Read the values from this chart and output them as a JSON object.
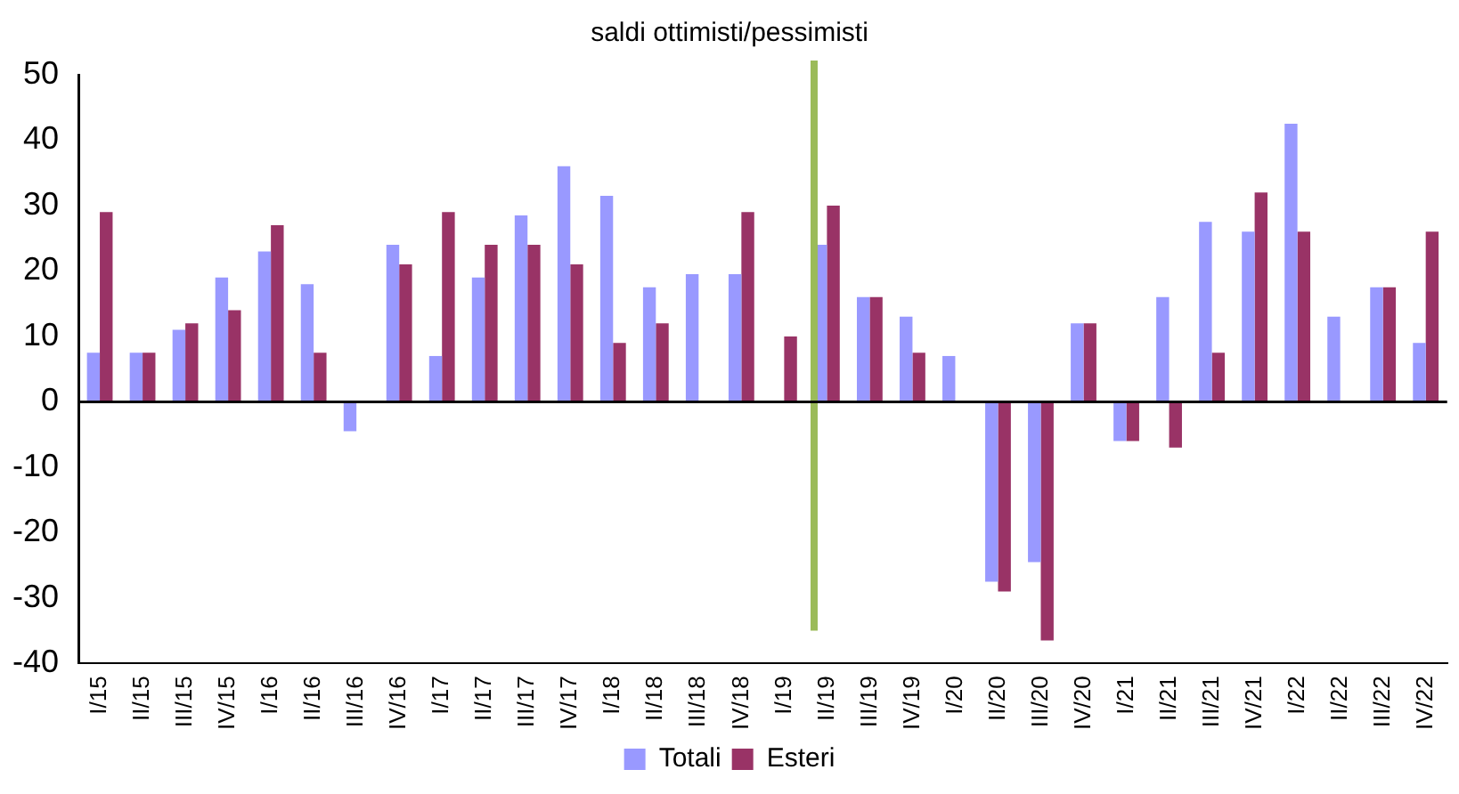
{
  "chart_data": {
    "type": "bar",
    "title": "saldi ottimisti/pessimisti",
    "categories": [
      "I/15",
      "II/15",
      "III/15",
      "IV/15",
      "I/16",
      "II/16",
      "III/16",
      "IV/16",
      "I/17",
      "II/17",
      "III/17",
      "IV/17",
      "I/18",
      "II/18",
      "III/18",
      "IV/18",
      "I/19",
      "II/19",
      "III/19",
      "IV/19",
      "I/20",
      "II/20",
      "III/20",
      "IV/20",
      "I/21",
      "II/21",
      "III/21",
      "IV/21",
      "I/22",
      "II/22",
      "III/22",
      "IV/22"
    ],
    "series": [
      {
        "name": "Totali",
        "color": "#9999ff",
        "values": [
          7.5,
          7.5,
          11,
          19,
          23,
          18,
          -4.5,
          24,
          7,
          19,
          28.5,
          36,
          31.5,
          17.5,
          19.5,
          19.5,
          0,
          24,
          16,
          13,
          7,
          -27.5,
          -24.5,
          12,
          -6,
          16,
          27.5,
          26,
          42.5,
          13,
          17.5,
          9
        ]
      },
      {
        "name": "Esteri",
        "color": "#993366",
        "values": [
          29,
          7.5,
          12,
          14,
          27,
          7.5,
          0,
          21,
          29,
          24,
          24,
          21,
          9,
          12,
          0,
          29,
          10,
          30,
          16,
          7.5,
          0,
          -29,
          -36.5,
          12,
          -6,
          -7,
          7.5,
          32,
          26,
          0,
          17.5,
          26
        ]
      }
    ],
    "ylim": [
      -40,
      50
    ],
    "yticks": [
      -40,
      -30,
      -20,
      -10,
      0,
      10,
      20,
      30,
      40,
      50
    ],
    "grid": false,
    "legend": "bottom",
    "ref_lines": [
      {
        "axis": "x",
        "value": "II/19",
        "color": "#9bbb59"
      },
      {
        "axis": "y",
        "value": 0,
        "color": "#000000"
      }
    ]
  }
}
